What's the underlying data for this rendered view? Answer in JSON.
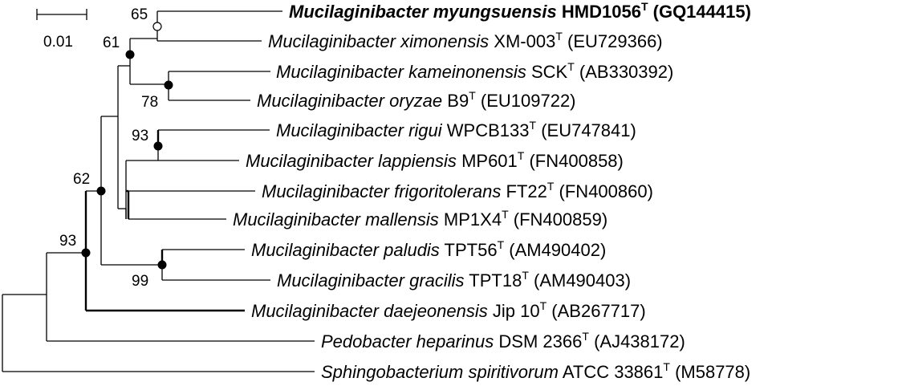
{
  "scale_bar": {
    "label": "0.01"
  },
  "taxa": [
    {
      "genus": "Mucilaginibacter",
      "species": "myungsuensis",
      "strain": "HMD1056",
      "type_mark": "T",
      "accession": "(GQ144415)",
      "bold": true
    },
    {
      "genus": "Mucilaginibacter",
      "species": "ximonensis",
      "strain": "XM-003",
      "type_mark": "T",
      "accession": "(EU729366)",
      "bold": false
    },
    {
      "genus": "Mucilaginibacter",
      "species": "kameinonensis",
      "strain": "SCK",
      "type_mark": "T",
      "accession": "(AB330392)",
      "bold": false
    },
    {
      "genus": "Mucilaginibacter",
      "species": "oryzae",
      "strain": "B9",
      "type_mark": "T",
      "accession": "(EU109722)",
      "bold": false
    },
    {
      "genus": "Mucilaginibacter",
      "species": "rigui",
      "strain": "WPCB133",
      "type_mark": "T",
      "accession": "(EU747841)",
      "bold": false
    },
    {
      "genus": "Mucilaginibacter",
      "species": "lappiensis",
      "strain": "MP601",
      "type_mark": "T",
      "accession": "(FN400858)",
      "bold": false
    },
    {
      "genus": "Mucilaginibacter",
      "species": "frigoritolerans",
      "strain": "FT22",
      "type_mark": "T",
      "accession": "(FN400860)",
      "bold": false
    },
    {
      "genus": "Mucilaginibacter",
      "species": "mallensis",
      "strain": "MP1X4",
      "type_mark": "T",
      "accession": "(FN400859)",
      "bold": false
    },
    {
      "genus": "Mucilaginibacter",
      "species": "paludis",
      "strain": "TPT56",
      "type_mark": "T",
      "accession": "(AM490402)",
      "bold": false
    },
    {
      "genus": "Mucilaginibacter",
      "species": "gracilis",
      "strain": "TPT18",
      "type_mark": "T",
      "accession": "(AM490403)",
      "bold": false
    },
    {
      "genus": "Mucilaginibacter",
      "species": "daejeonensis",
      "strain": "Jip 10",
      "type_mark": "T",
      "accession": "(AB267717)",
      "bold": false
    },
    {
      "genus": "Pedobacter",
      "species": "heparinus",
      "strain": "DSM 2366",
      "type_mark": "T",
      "accession": "(AJ438172)",
      "bold": false
    },
    {
      "genus": "Sphingobacterium",
      "species": "spiritivorum",
      "strain": "ATCC 33861",
      "type_mark": "T",
      "accession": "(M58778)",
      "bold": false
    }
  ],
  "bootstrap": [
    {
      "id": "n65",
      "value": "65",
      "marker": "open"
    },
    {
      "id": "n61",
      "value": "61",
      "marker": "filled"
    },
    {
      "id": "n78",
      "value": "78",
      "marker": "filled"
    },
    {
      "id": "n93a",
      "value": "93",
      "marker": "filled"
    },
    {
      "id": "n62",
      "value": "62",
      "marker": "filled"
    },
    {
      "id": "n99",
      "value": "99",
      "marker": "filled"
    },
    {
      "id": "n93b",
      "value": "93",
      "marker": "filled"
    }
  ],
  "colors": {
    "line": "#000000",
    "background": "#ffffff"
  }
}
